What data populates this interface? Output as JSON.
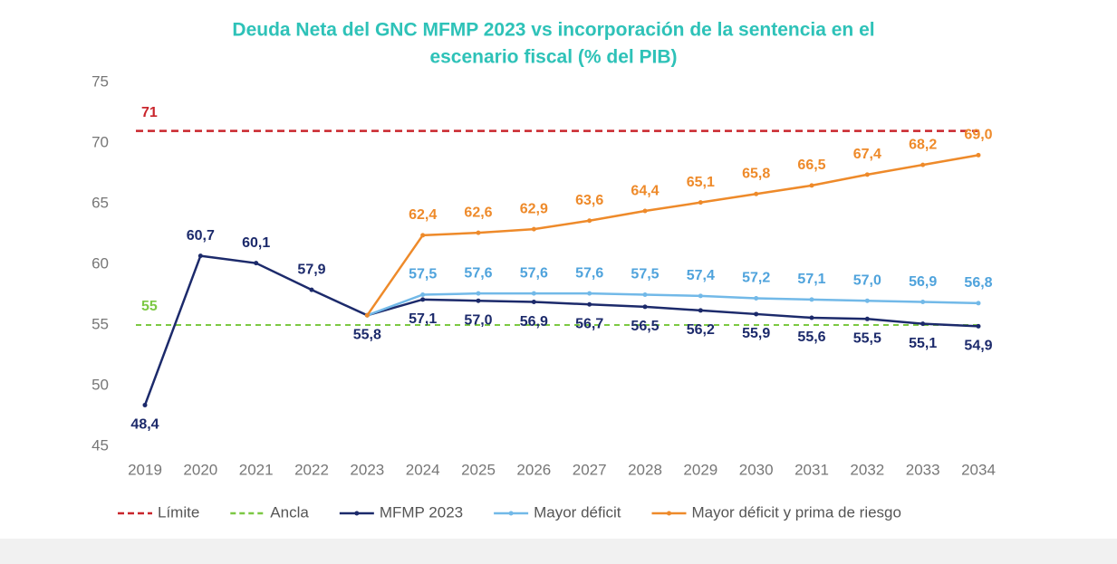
{
  "chart_data": {
    "type": "line",
    "title": "Deuda Neta del GNC MFMP 2023 vs incorporación de la sentencia en el",
    "subtitle": "escenario fiscal (% del PIB)",
    "categories": [
      "2019",
      "2020",
      "2021",
      "2022",
      "2023",
      "2024",
      "2025",
      "2026",
      "2027",
      "2028",
      "2029",
      "2030",
      "2031",
      "2032",
      "2033",
      "2034"
    ],
    "ylim": [
      45,
      75
    ],
    "yticks": [
      45,
      50,
      55,
      60,
      65,
      70,
      75
    ],
    "reference_lines": [
      {
        "name": "Límite",
        "value": 71,
        "color": "#c9252c"
      },
      {
        "name": "Ancla",
        "value": 55,
        "color": "#7cc843"
      }
    ],
    "series": [
      {
        "name": "MFMP 2023",
        "color": "#1c2a6b",
        "values": [
          48.4,
          60.7,
          60.1,
          57.9,
          55.8,
          57.1,
          57.0,
          56.9,
          56.7,
          56.5,
          56.2,
          55.9,
          55.6,
          55.5,
          55.1,
          54.9
        ],
        "value_labels": [
          "48,4",
          "60,7",
          "60,1",
          "57,9",
          "55,8",
          "57,1",
          "57,0",
          "56,9",
          "56,7",
          "56,5",
          "56,2",
          "55,9",
          "55,6",
          "55,5",
          "55,1",
          "54,9"
        ]
      },
      {
        "name": "Mayor déficit",
        "color": "#72b9e8",
        "values": [
          null,
          null,
          null,
          null,
          55.8,
          57.5,
          57.6,
          57.6,
          57.6,
          57.5,
          57.4,
          57.2,
          57.1,
          57.0,
          56.9,
          56.8
        ],
        "value_labels": [
          null,
          null,
          null,
          null,
          null,
          "57,5",
          "57,6",
          "57,6",
          "57,6",
          "57,5",
          "57,4",
          "57,2",
          "57,1",
          "57,0",
          "56,9",
          "56,8"
        ]
      },
      {
        "name": "Mayor déficit y prima de riesgo",
        "color": "#ee8a2a",
        "values": [
          null,
          null,
          null,
          null,
          55.8,
          62.4,
          62.6,
          62.9,
          63.6,
          64.4,
          65.1,
          65.8,
          66.5,
          67.4,
          68.2,
          69.0
        ],
        "value_labels": [
          null,
          null,
          null,
          null,
          null,
          "62,4",
          "62,6",
          "62,9",
          "63,6",
          "64,4",
          "65,1",
          "65,8",
          "66,5",
          "67,4",
          "68,2",
          "69,0"
        ]
      }
    ]
  }
}
